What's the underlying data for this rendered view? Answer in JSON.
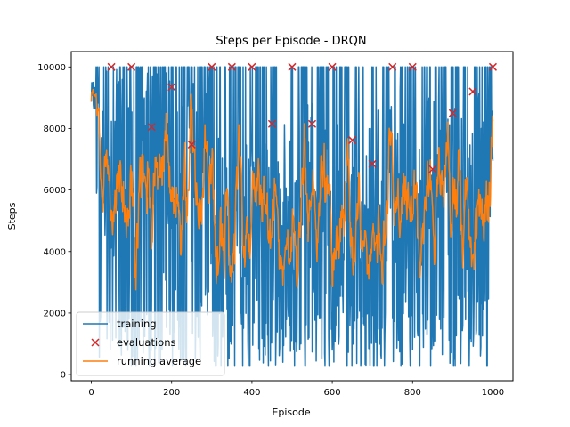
{
  "chart_data": {
    "type": "line",
    "title": "Steps per Episode - DRQN",
    "xlabel": "Episode",
    "ylabel": "Steps",
    "xlim": [
      -50,
      1050
    ],
    "ylim": [
      -200,
      10500
    ],
    "xticks": [
      0,
      200,
      400,
      600,
      800,
      1000
    ],
    "yticks": [
      0,
      2000,
      4000,
      6000,
      8000,
      10000
    ],
    "grid": false,
    "legend_position": "lower-left",
    "colors": {
      "training": "#1f77b4",
      "evaluations": "#d62728",
      "running_average": "#ff7f0e"
    },
    "series": [
      {
        "name": "training",
        "kind": "line",
        "envelope_note_free": true,
        "x_start": 0,
        "x_end": 1000,
        "seed": 7,
        "mean_profile": [
          [
            0,
            9000
          ],
          [
            20,
            7300
          ],
          [
            50,
            7000
          ],
          [
            80,
            5500
          ],
          [
            120,
            5000
          ],
          [
            160,
            5500
          ],
          [
            200,
            4600
          ],
          [
            240,
            5200
          ],
          [
            260,
            6200
          ],
          [
            300,
            4400
          ],
          [
            350,
            4200
          ],
          [
            400,
            4000
          ],
          [
            450,
            4300
          ],
          [
            500,
            3900
          ],
          [
            550,
            4500
          ],
          [
            600,
            3900
          ],
          [
            650,
            4400
          ],
          [
            700,
            4300
          ],
          [
            750,
            4700
          ],
          [
            800,
            4400
          ],
          [
            850,
            4500
          ],
          [
            900,
            4700
          ],
          [
            950,
            4300
          ],
          [
            1000,
            5000
          ]
        ],
        "max": 10000,
        "min": 300
      },
      {
        "name": "evaluations",
        "kind": "scatter",
        "x": [
          50,
          100,
          150,
          200,
          250,
          300,
          350,
          400,
          450,
          500,
          550,
          600,
          650,
          700,
          750,
          800,
          850,
          900,
          950,
          1000
        ],
        "y": [
          10000,
          10000,
          8050,
          9350,
          7480,
          10000,
          10000,
          10000,
          8150,
          10000,
          8150,
          10000,
          7620,
          6850,
          10000,
          10000,
          6680,
          8500,
          9200,
          10000
        ]
      },
      {
        "name": "running average",
        "kind": "line",
        "smoothing_window": 10
      }
    ]
  }
}
